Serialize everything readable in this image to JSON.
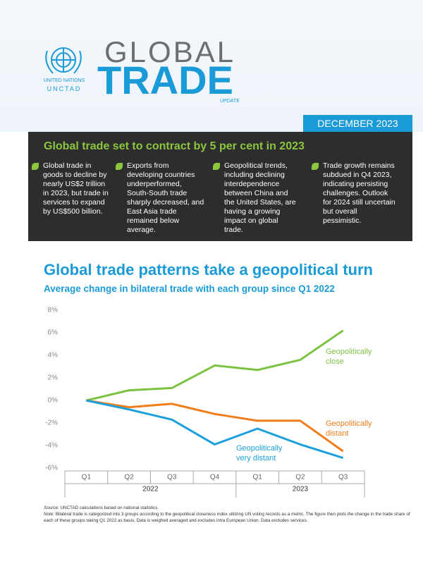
{
  "header": {
    "org_line1": "UNITED NATIONS",
    "org_line2": "UNCTAD",
    "title_line1": "GLOBAL",
    "title_line2": "TRADE",
    "title_line3": "UPDATE",
    "date": "DECEMBER 2023"
  },
  "summary": {
    "headline": "Global trade set to contract by 5 per cent in 2023",
    "points": [
      "Global trade in goods to decline by nearly US$2 trillion in 2023, but trade in services to expand by US$500 billion.",
      "Exports from developing countries underperformed, South-South trade sharply decreased, and East Asia trade remained below average.",
      "Geopolitical trends, including declining interdependence between China and the United States, are having a growing impact on global trade.",
      "Trade growth remains subdued in Q4 2023, indicating persisting challenges. Outlook for 2024 still uncertain but overall pessimistic."
    ]
  },
  "chart_data": {
    "type": "line",
    "title": "Global trade patterns take a geopolitical turn",
    "subtitle": "Average change in bilateral trade with each group since Q1 2022",
    "categories": [
      "Q1",
      "Q2",
      "Q3",
      "Q4",
      "Q1",
      "Q2",
      "Q3"
    ],
    "x_groups": [
      "2022",
      "2023"
    ],
    "ylim": [
      -6,
      8
    ],
    "yticks": [
      {
        "value": -6,
        "label": "-6%"
      },
      {
        "value": -4,
        "label": "-4%"
      },
      {
        "value": -2,
        "label": "-2%"
      },
      {
        "value": 0,
        "label": "0%"
      },
      {
        "value": 2,
        "label": "2%"
      },
      {
        "value": 4,
        "label": "4%"
      },
      {
        "value": 6,
        "label": "6%"
      },
      {
        "value": 8,
        "label": "8%"
      }
    ],
    "grid": false,
    "series": [
      {
        "name": "Geopolitically close",
        "color": "#7cc242",
        "values": [
          0,
          0.9,
          1.1,
          3.1,
          2.7,
          3.6,
          6.2
        ]
      },
      {
        "name": "Geopolitically distant",
        "color": "#f07d1a",
        "values": [
          0,
          -0.6,
          -0.3,
          -1.2,
          -1.8,
          -1.8,
          -4.5
        ]
      },
      {
        "name": "Geopolitically very distant",
        "color": "#1ba0dc",
        "values": [
          0,
          -0.8,
          -1.7,
          -3.9,
          -2.5,
          -3.9,
          -5.1
        ]
      }
    ]
  },
  "footer": {
    "source_label": "Source:",
    "source": "UNCTAD calculations based on national statistics.",
    "note_label": "Note:",
    "note": "Bilateral trade is categorized into 3 groups according to the geopolitical closeness index utilizing UN voting records as a metric. The figure then plots the change in the trade share of each of these groups taking Q1 2022 as basis. Data is weighed averaged and excludes intra European Union. Data excludes services."
  }
}
